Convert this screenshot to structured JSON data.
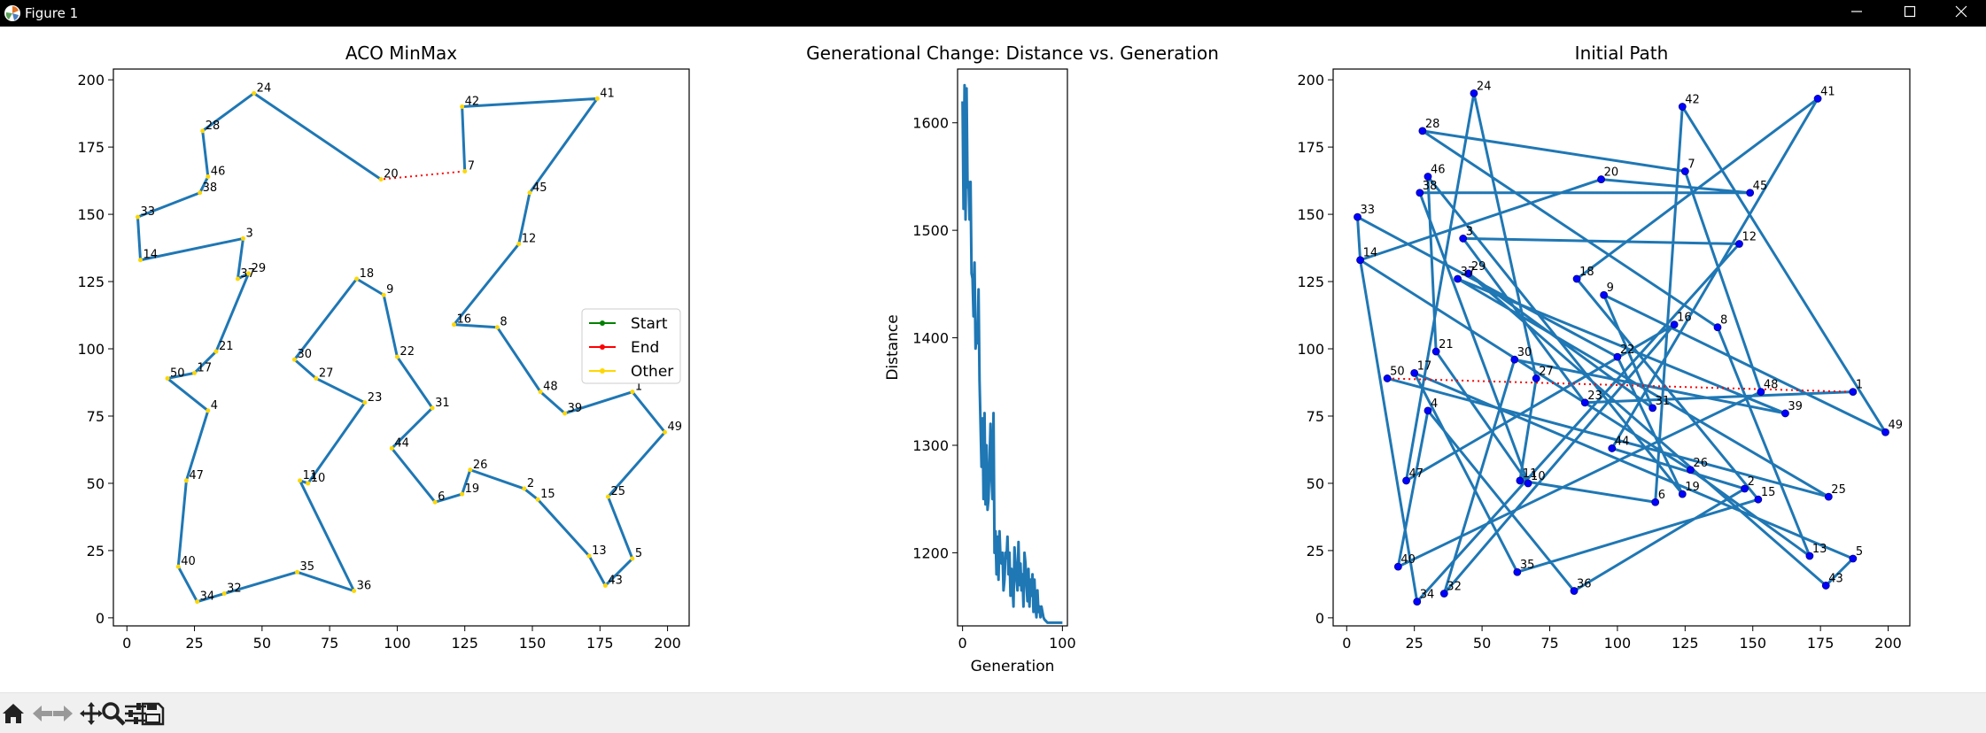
{
  "window": {
    "title": "Figure 1"
  },
  "toolbar": {
    "buttons": [
      {
        "name": "home-icon"
      },
      {
        "name": "back-icon"
      },
      {
        "name": "forward-icon"
      },
      {
        "name": "pan-icon"
      },
      {
        "name": "zoom-icon"
      },
      {
        "name": "configure-subplots-icon"
      },
      {
        "name": "save-icon"
      }
    ]
  },
  "colors": {
    "route": "#1f77b4",
    "other": "#ffd700",
    "start": "green",
    "end": "red",
    "dot": "#0000ff"
  },
  "chart_data": [
    {
      "type": "line",
      "title": "ACO MinMax",
      "xlim": [
        -5,
        208
      ],
      "ylim": [
        -3,
        204
      ],
      "xticks": [
        0,
        25,
        50,
        75,
        100,
        125,
        150,
        175,
        200
      ],
      "yticks": [
        0,
        25,
        50,
        75,
        100,
        125,
        150,
        175,
        200
      ],
      "tour": [
        20,
        24,
        28,
        46,
        38,
        33,
        14,
        3,
        37,
        29,
        21,
        17,
        50,
        4,
        47,
        40,
        34,
        32,
        35,
        36,
        11,
        10,
        23,
        27,
        30,
        18,
        9,
        22,
        31,
        44,
        6,
        19,
        26,
        2,
        15,
        13,
        43,
        5,
        25,
        49,
        1,
        39,
        48,
        8,
        16,
        12,
        45,
        41,
        42,
        7
      ],
      "closing_segment": {
        "from": 7,
        "to": 20,
        "style": "dotted red"
      },
      "legend": {
        "location": "right",
        "entries": [
          "Start",
          "End",
          "Other"
        ]
      }
    },
    {
      "type": "line",
      "title": "Generational Change: Distance vs. Generation",
      "xlabel": "Generation",
      "ylabel": "Distance",
      "xlim": [
        -5,
        105
      ],
      "ylim": [
        1132,
        1650
      ],
      "xticks": [
        0,
        100
      ],
      "yticks": [
        1200,
        1300,
        1400,
        1500,
        1600
      ],
      "series": [
        {
          "x": [
            0,
            1,
            2,
            3,
            4,
            5,
            6,
            7,
            8,
            9,
            10,
            11,
            12,
            13,
            14,
            15,
            16,
            17,
            18,
            19,
            20,
            21,
            22,
            23,
            24,
            25,
            26,
            27,
            28,
            29,
            30,
            31,
            32,
            33,
            34,
            35,
            36,
            37,
            38,
            39,
            40,
            41,
            42,
            43,
            44,
            45,
            46,
            47,
            48,
            49,
            50,
            51,
            52,
            53,
            54,
            55,
            56,
            57,
            58,
            59,
            60,
            61,
            62,
            63,
            64,
            65,
            66,
            67,
            68,
            69,
            70,
            71,
            72,
            73,
            74,
            75,
            76,
            77,
            78,
            79,
            80,
            81,
            82,
            83,
            84,
            85,
            86,
            87,
            88,
            89,
            90,
            91,
            92,
            93,
            94,
            95,
            96,
            97,
            98,
            99,
            100
          ],
          "values": [
            1620,
            1520,
            1635,
            1510,
            1632,
            1540,
            1545,
            1510,
            1545,
            1460,
            1455,
            1420,
            1470,
            1390,
            1400,
            1395,
            1445,
            1360,
            1320,
            1280,
            1325,
            1250,
            1330,
            1245,
            1300,
            1240,
            1250,
            1285,
            1320,
            1270,
            1250,
            1330,
            1200,
            1220,
            1180,
            1215,
            1175,
            1220,
            1195,
            1190,
            1200,
            1165,
            1175,
            1200,
            1195,
            1215,
            1180,
            1200,
            1160,
            1185,
            1170,
            1150,
            1205,
            1190,
            1175,
            1165,
            1210,
            1170,
            1190,
            1165,
            1180,
            1150,
            1200,
            1190,
            1170,
            1155,
            1185,
            1150,
            1175,
            1160,
            1180,
            1145,
            1175,
            1150,
            1140,
            1165,
            1145,
            1150,
            1140,
            1150,
            1145,
            1140,
            1138,
            1137,
            1136,
            1135,
            1135,
            1135,
            1135,
            1135,
            1135,
            1135,
            1135,
            1135,
            1135,
            1135,
            1135,
            1135,
            1135,
            1135,
            1135
          ]
        }
      ]
    },
    {
      "type": "scatter",
      "title": "Initial Path",
      "xlim": [
        -5,
        208
      ],
      "ylim": [
        -3,
        204
      ],
      "xticks": [
        0,
        25,
        50,
        75,
        100,
        125,
        150,
        175,
        200
      ],
      "yticks": [
        0,
        25,
        50,
        75,
        100,
        125,
        150,
        175,
        200
      ],
      "tour": [
        1,
        23,
        3,
        12,
        34,
        14,
        20,
        45,
        38,
        10,
        21,
        46,
        19,
        22,
        33,
        14,
        26,
        13,
        8,
        28,
        7,
        48,
        40,
        4,
        36,
        2,
        44,
        41,
        18,
        15,
        35,
        17,
        5,
        43,
        29,
        31,
        9,
        49,
        42,
        6,
        11,
        27,
        24,
        47,
        16,
        32,
        30,
        39,
        37,
        25,
        50
      ],
      "closing_segment": {
        "from": 50,
        "to": 1,
        "style": "dotted red"
      }
    }
  ],
  "cities": {
    "1": [
      187,
      84
    ],
    "2": [
      147,
      48
    ],
    "3": [
      43,
      141
    ],
    "4": [
      30,
      77
    ],
    "5": [
      187,
      22
    ],
    "6": [
      114,
      43
    ],
    "7": [
      125,
      166
    ],
    "8": [
      137,
      108
    ],
    "9": [
      95,
      120
    ],
    "10": [
      67,
      50
    ],
    "11": [
      64,
      51
    ],
    "12": [
      145,
      139
    ],
    "13": [
      171,
      23
    ],
    "14": [
      5,
      133
    ],
    "15": [
      152,
      44
    ],
    "16": [
      121,
      109
    ],
    "17": [
      25,
      91
    ],
    "18": [
      85,
      126
    ],
    "19": [
      124,
      46
    ],
    "20": [
      94,
      163
    ],
    "21": [
      33,
      99
    ],
    "22": [
      100,
      97
    ],
    "23": [
      88,
      80
    ],
    "24": [
      47,
      195
    ],
    "25": [
      178,
      45
    ],
    "26": [
      127,
      55
    ],
    "27": [
      70,
      89
    ],
    "28": [
      28,
      181
    ],
    "29": [
      45,
      128
    ],
    "30": [
      62,
      96
    ],
    "31": [
      113,
      78
    ],
    "32": [
      36,
      9
    ],
    "33": [
      4,
      149
    ],
    "34": [
      26,
      6
    ],
    "35": [
      63,
      17
    ],
    "36": [
      84,
      10
    ],
    "37": [
      41,
      126
    ],
    "38": [
      27,
      158
    ],
    "39": [
      162,
      76
    ],
    "40": [
      19,
      19
    ],
    "41": [
      174,
      193
    ],
    "42": [
      124,
      190
    ],
    "43": [
      177,
      12
    ],
    "44": [
      98,
      63
    ],
    "45": [
      149,
      158
    ],
    "46": [
      30,
      164
    ],
    "47": [
      22,
      51
    ],
    "48": [
      153,
      84
    ],
    "49": [
      199,
      69
    ],
    "50": [
      15,
      89
    ]
  }
}
